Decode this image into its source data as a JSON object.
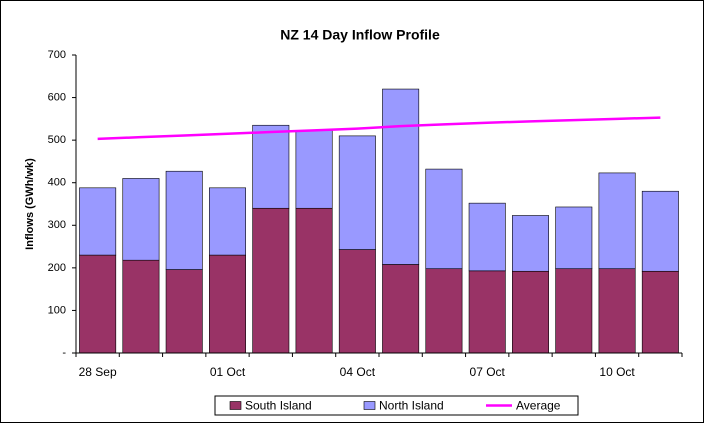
{
  "chart_data": {
    "type": "stacked_bar_line",
    "title": "NZ 14 Day Inflow Profile",
    "y_label": "Inflows (GWh/wk)",
    "categories": [
      "28 Sep",
      null,
      null,
      "01 Oct",
      null,
      null,
      "04 Oct",
      null,
      null,
      "07 Oct",
      null,
      null,
      "10 Oct",
      null
    ],
    "series": [
      {
        "name": "South Island",
        "color": "#993366",
        "kind": "bar",
        "values": [
          230,
          218,
          196,
          230,
          340,
          340,
          243,
          208,
          198,
          193,
          192,
          198,
          198,
          192
        ]
      },
      {
        "name": "North Island",
        "color": "#9999ff",
        "kind": "bar",
        "values": [
          158,
          192,
          231,
          158,
          195,
          183,
          267,
          412,
          234,
          159,
          131,
          145,
          225,
          188
        ]
      },
      {
        "name": "Average",
        "color": "#ff00ff",
        "kind": "line",
        "values": [
          503,
          507,
          511,
          515,
          519,
          523,
          527,
          533,
          537,
          541,
          544,
          547,
          550,
          553
        ]
      }
    ],
    "ylim": [
      0,
      700
    ],
    "yticks": [
      {
        "value": 0,
        "label": "-"
      },
      100,
      200,
      300,
      400,
      500,
      600,
      700
    ],
    "grid": false,
    "legend": "bottom"
  }
}
